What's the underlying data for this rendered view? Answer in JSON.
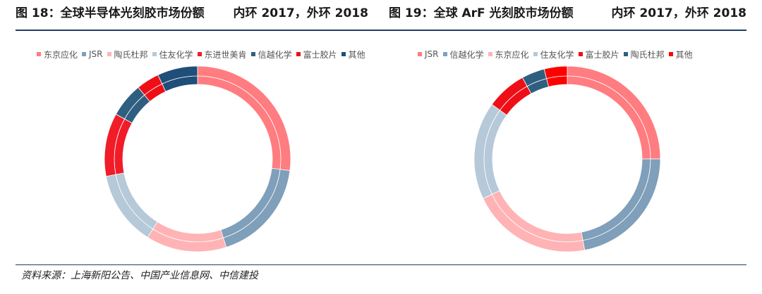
{
  "header_left": {
    "title": "图 18：全球半导体光刻胶市场份额",
    "note": "内环 2017，外环 2018"
  },
  "header_right": {
    "title": "图 19：全球 ArF 光刻胶市场份额",
    "note": "内环 2017，外环 2018"
  },
  "source": "资料来源：上海新阳公告、中国产业信息网、中信建投",
  "chart_data": [
    {
      "type": "donut",
      "title": "图 18：全球半导体光刻胶市场份额",
      "note": "内环 2017，外环 2018",
      "legend_position": "top",
      "categories": [
        "东京应化",
        "JSR",
        "陶氏杜邦",
        "住友化学",
        "东进世美肯",
        "信越化学",
        "富士胶片",
        "其他"
      ],
      "colors": [
        "#FF7C80",
        "#7F9FBA",
        "#FFB3B5",
        "#B6C9D9",
        "#F01C28",
        "#2E5F80",
        "#EE0F16",
        "#1F4E79"
      ],
      "series": [
        {
          "ring": "inner",
          "values": [
            27,
            18,
            14,
            13,
            11,
            6,
            4,
            7
          ]
        },
        {
          "ring": "outer",
          "values": [
            27,
            18,
            14,
            13,
            11,
            6,
            4,
            7
          ]
        }
      ]
    },
    {
      "type": "donut",
      "title": "图 19：全球 ArF 光刻胶市场份额",
      "note": "内环 2017，外环 2018",
      "legend_position": "top",
      "categories": [
        "JSR",
        "信越化学",
        "东京应化",
        "住友化学",
        "富士胶片",
        "陶氏杜邦",
        "其他"
      ],
      "colors": [
        "#FF7C80",
        "#7F9FBA",
        "#FFB3B5",
        "#B6C9D9",
        "#EE0F16",
        "#2E5F80",
        "#FF0000"
      ],
      "series": [
        {
          "ring": "inner",
          "values": [
            25,
            22,
            21,
            17,
            7,
            4,
            4
          ]
        },
        {
          "ring": "outer",
          "values": [
            25,
            22,
            21,
            17,
            7,
            4,
            4
          ]
        }
      ]
    }
  ]
}
